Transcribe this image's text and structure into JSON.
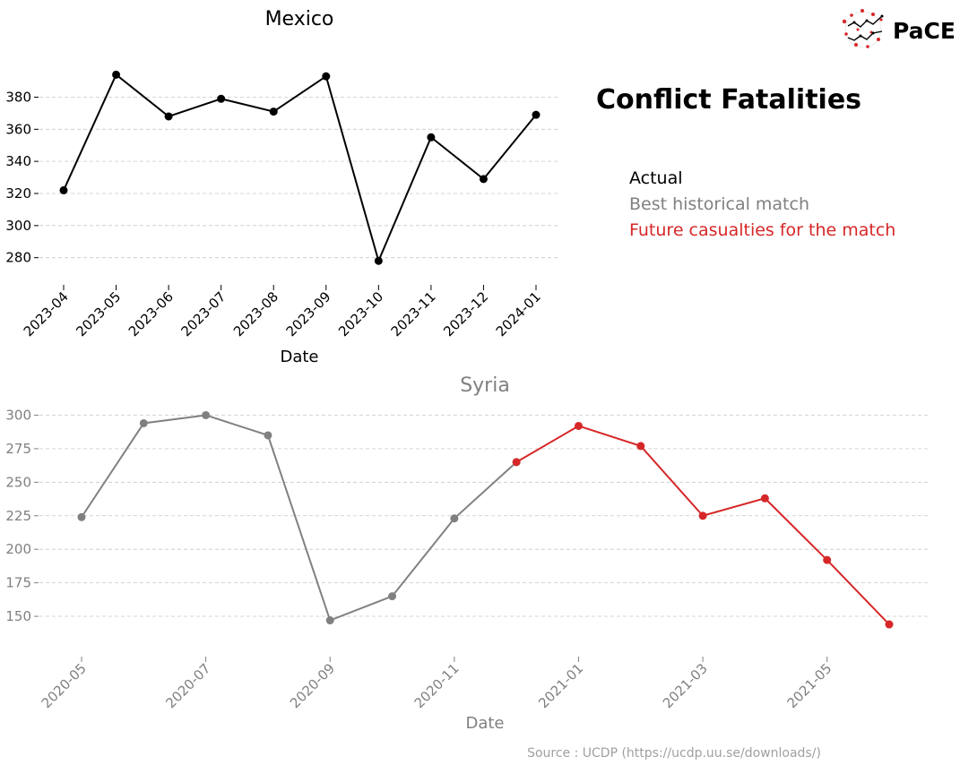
{
  "header": {
    "title": "Conflict Fatalities",
    "logo_text": "PaCE"
  },
  "legend": {
    "actual": "Actual",
    "match": "Best historical match",
    "future": "Future casualties for the match"
  },
  "colors": {
    "actual": "#000000",
    "match": "#808080",
    "future": "#d62728",
    "grid": "#c8c8c8",
    "source": "#a0a0a0"
  },
  "footer": {
    "source": "Source : UCDP (https://ucdp.uu.se/downloads/)"
  },
  "chart_data": [
    {
      "type": "line",
      "title": "Mexico",
      "xlabel": "Date",
      "ylabel": "",
      "x": [
        "2023-04",
        "2023-05",
        "2023-06",
        "2023-07",
        "2023-08",
        "2023-09",
        "2023-10",
        "2023-11",
        "2023-12",
        "2024-01"
      ],
      "x_ticks": [
        "2023-04",
        "2023-05",
        "2023-06",
        "2023-07",
        "2023-08",
        "2023-09",
        "2023-10",
        "2023-11",
        "2023-12",
        "2024-01"
      ],
      "y_ticks": [
        280,
        300,
        320,
        340,
        360,
        380
      ],
      "ylim": [
        272,
        397
      ],
      "grid": true,
      "series": [
        {
          "name": "Actual",
          "color": "#000000",
          "values": [
            322,
            394,
            368,
            379,
            371,
            393,
            278,
            355,
            329,
            369
          ]
        }
      ]
    },
    {
      "type": "line",
      "title": "Syria",
      "xlabel": "Date",
      "ylabel": "",
      "x": [
        "2020-05",
        "2020-06",
        "2020-07",
        "2020-08",
        "2020-09",
        "2020-10",
        "2020-11",
        "2020-12",
        "2021-01",
        "2021-02",
        "2021-03",
        "2021-04",
        "2021-05",
        "2021-06"
      ],
      "x_ticks": [
        "2020-05",
        "2020-07",
        "2020-09",
        "2020-11",
        "2021-01",
        "2021-03",
        "2021-05"
      ],
      "y_ticks": [
        150,
        175,
        200,
        225,
        250,
        275,
        300
      ],
      "ylim": [
        138,
        305
      ],
      "grid": true,
      "series": [
        {
          "name": "Best historical match",
          "color": "#808080",
          "x": [
            "2020-05",
            "2020-06",
            "2020-07",
            "2020-08",
            "2020-09",
            "2020-10",
            "2020-11",
            "2020-12"
          ],
          "values": [
            224,
            294,
            300,
            285,
            147,
            165,
            223,
            265
          ]
        },
        {
          "name": "Future casualties for the match",
          "color": "#d62728",
          "x": [
            "2020-12",
            "2021-01",
            "2021-02",
            "2021-03",
            "2021-04",
            "2021-05",
            "2021-06"
          ],
          "values": [
            265,
            292,
            277,
            225,
            238,
            192,
            144
          ]
        }
      ]
    }
  ]
}
